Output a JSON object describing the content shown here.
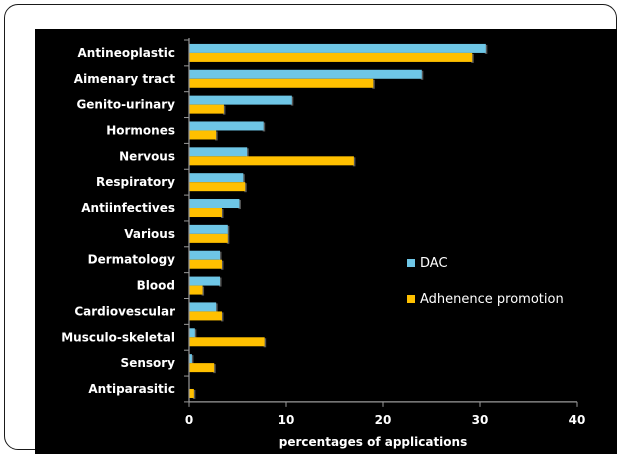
{
  "chart_data": {
    "type": "bar",
    "orientation": "horizontal",
    "categories": [
      "Antineoplastic",
      "Aimenary tract",
      "Genito-urinary",
      "Hormones",
      "Nervous",
      "Respiratory",
      "Antiinfectives",
      "Various",
      "Dermatology",
      "Blood",
      "Cardiovescular",
      "Musculo-skeletal",
      "Sensory",
      "Antiparasitic"
    ],
    "series": [
      {
        "name": "DAC",
        "color": "#6ec6e6",
        "values": [
          30.6,
          24.0,
          10.6,
          7.7,
          6.0,
          5.6,
          5.2,
          4.0,
          3.2,
          3.2,
          2.8,
          0.6,
          0.3,
          0.0
        ]
      },
      {
        "name": "Adherence promotion",
        "color": "#ffc000",
        "values": [
          29.2,
          19.0,
          3.6,
          2.8,
          17.0,
          5.8,
          3.4,
          4.0,
          3.4,
          1.4,
          3.4,
          7.8,
          2.6,
          0.5
        ]
      }
    ],
    "legend_labels": [
      "DAC",
      "Adhenence promotion"
    ],
    "xlabel": "percentages of applications",
    "xlim": [
      0,
      40
    ],
    "xticks": [
      "0",
      "10",
      "20",
      "30",
      "40"
    ],
    "legend_position": "right-middle",
    "grid": false,
    "background": "#000000",
    "text_color": "#ffffff"
  }
}
